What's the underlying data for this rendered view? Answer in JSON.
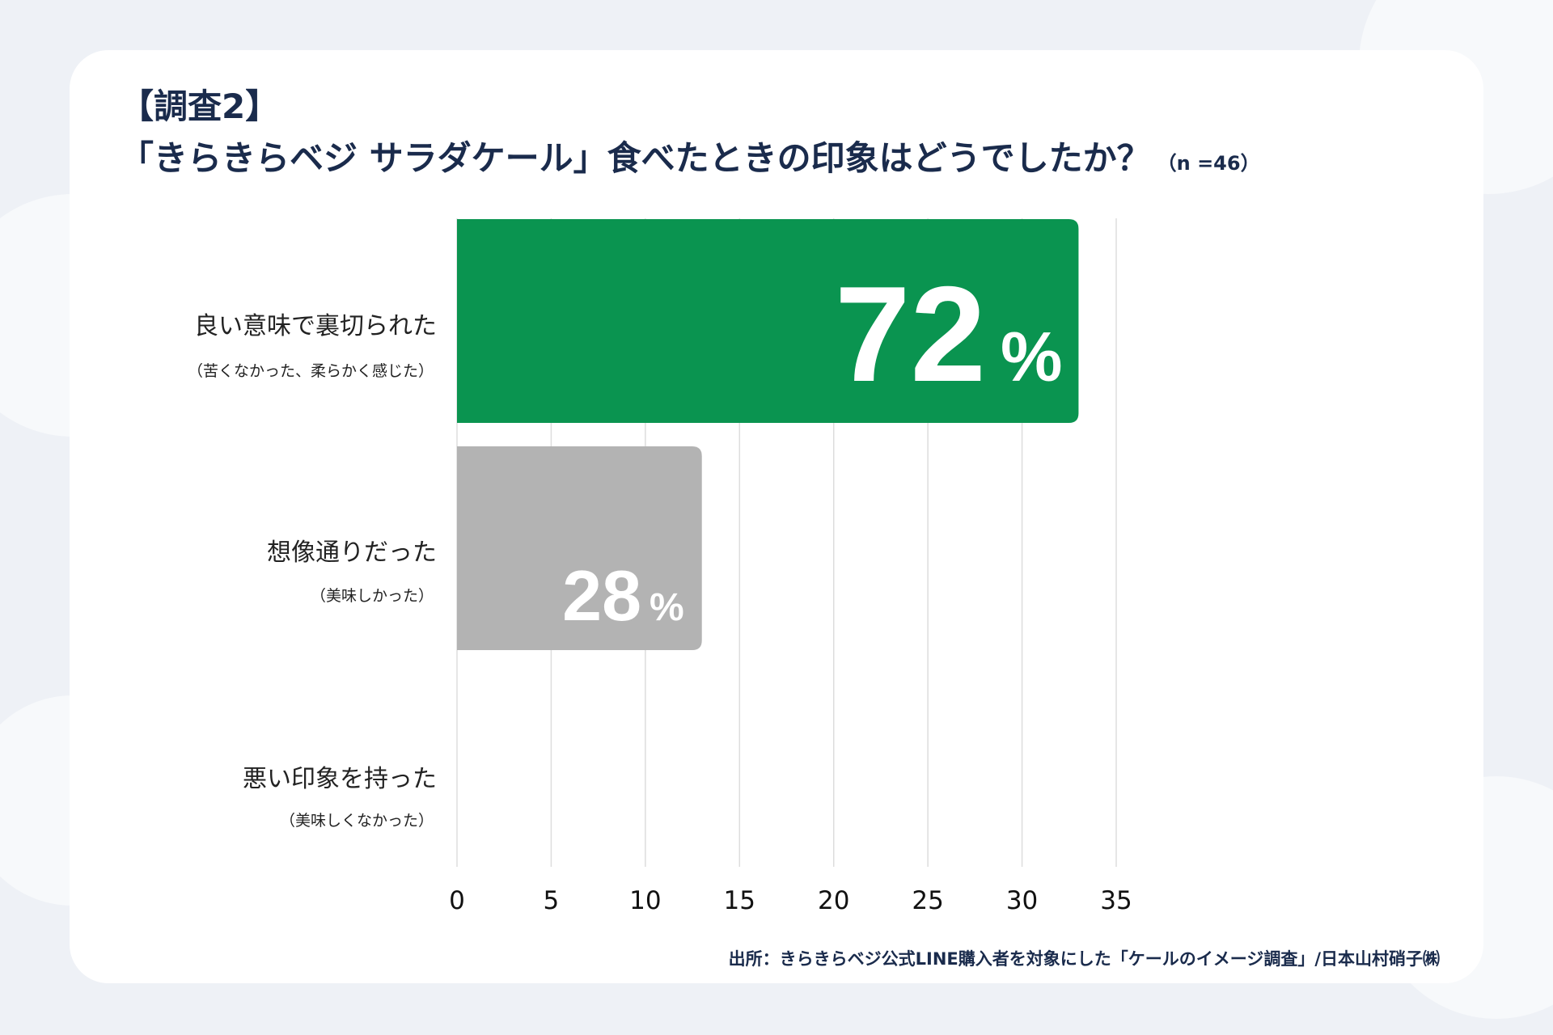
{
  "title": {
    "line1": "【調査2】",
    "line2": "「きらきらベジ サラダケール」食べたときの印象はどうでしたか？",
    "sample": "（n =46）"
  },
  "source": "出所：きらきらベジ公式LINE購入者を対象にした「ケールのイメージ調査」/日本山村硝子㈱",
  "colors": {
    "green": "#0a9450",
    "gray": "#b3b3b3",
    "grid": "#dddddd"
  },
  "chart_data": {
    "type": "bar",
    "orientation": "horizontal",
    "categories": [
      {
        "label": "良い意味で裏切られた",
        "sublabel": "（苦くなかった、柔らかく感じた）"
      },
      {
        "label": "想像通りだった",
        "sublabel": "（美味しかった）"
      },
      {
        "label": "悪い印象を持った",
        "sublabel": "（美味しくなかった）"
      }
    ],
    "values": [
      33,
      13,
      0
    ],
    "percent_labels": [
      "72",
      "28",
      ""
    ],
    "percent_sign": "%",
    "xlim": [
      0,
      35
    ],
    "xticks": [
      "0",
      "5",
      "10",
      "15",
      "20",
      "25",
      "30",
      "35"
    ],
    "grid": true
  }
}
